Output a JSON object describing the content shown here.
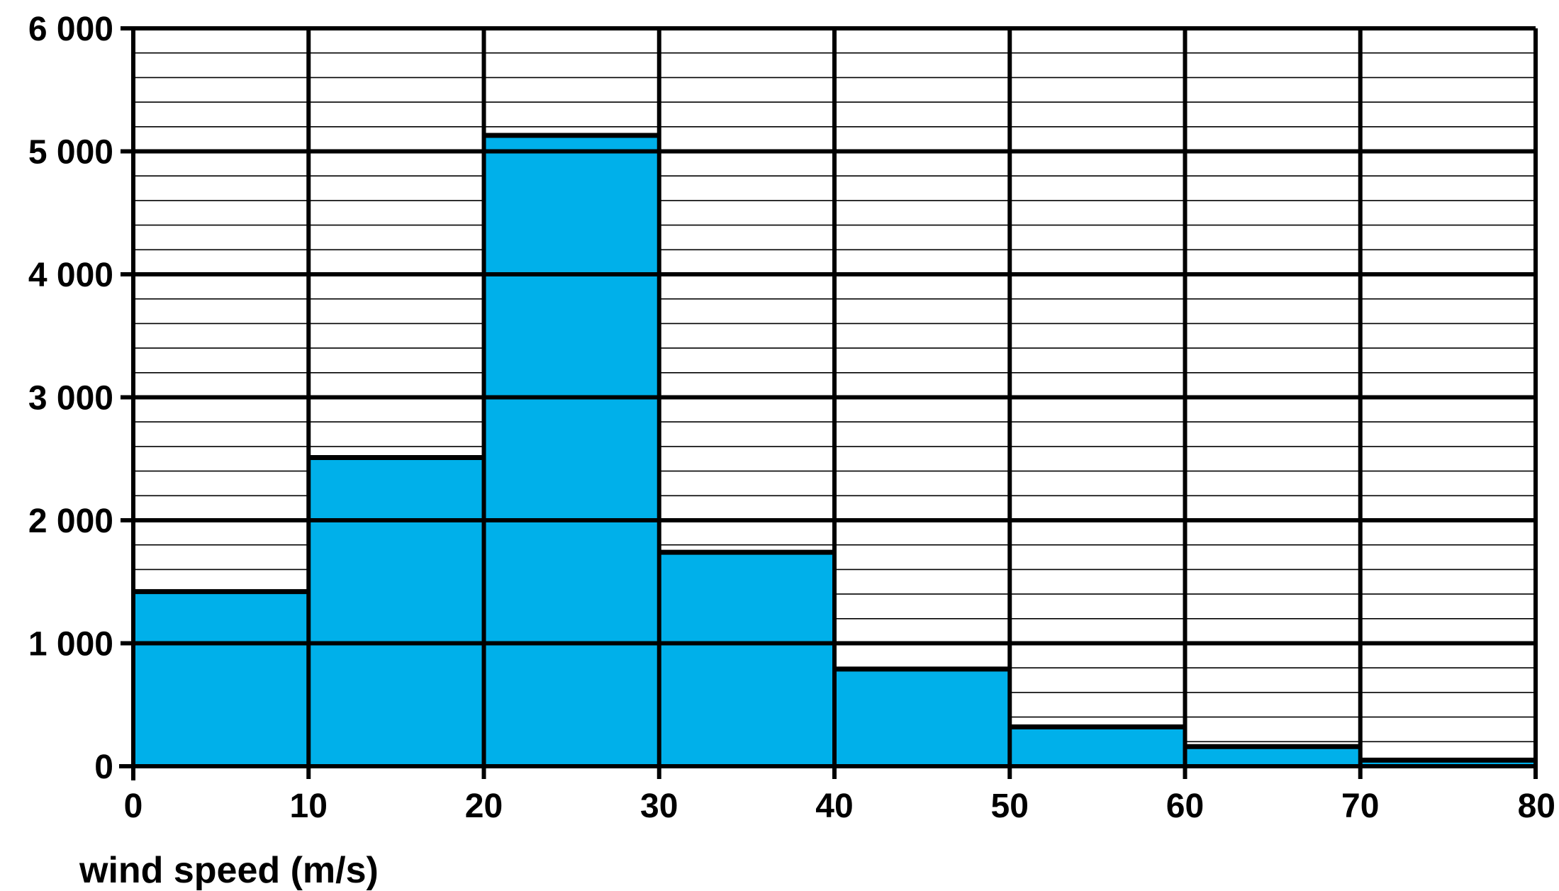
{
  "chart_data": {
    "type": "bar",
    "histogram": true,
    "bins": [
      {
        "x0": 0,
        "x1": 10,
        "value": 1420
      },
      {
        "x0": 10,
        "x1": 20,
        "value": 2510
      },
      {
        "x0": 20,
        "x1": 30,
        "value": 5130
      },
      {
        "x0": 30,
        "x1": 40,
        "value": 1740
      },
      {
        "x0": 40,
        "x1": 50,
        "value": 790
      },
      {
        "x0": 50,
        "x1": 60,
        "value": 320
      },
      {
        "x0": 60,
        "x1": 70,
        "value": 160
      },
      {
        "x0": 70,
        "x1": 80,
        "value": 50
      }
    ],
    "xlim": [
      0,
      80
    ],
    "ylim": [
      0,
      6000
    ],
    "x_ticks": [
      "0",
      "10",
      "20",
      "30",
      "40",
      "50",
      "60",
      "70",
      "80"
    ],
    "y_ticks": [
      "0",
      "1 000",
      "2 000",
      "3 000",
      "4 000",
      "5 000",
      "6 000"
    ],
    "xlabel": "wind speed (m/s)",
    "ylabel": "",
    "title": "",
    "grid": true,
    "minor_gridline_step": 200,
    "major_gridline_step": 1000,
    "bar_color": "#00b0ea",
    "edge_color": "#000000"
  }
}
